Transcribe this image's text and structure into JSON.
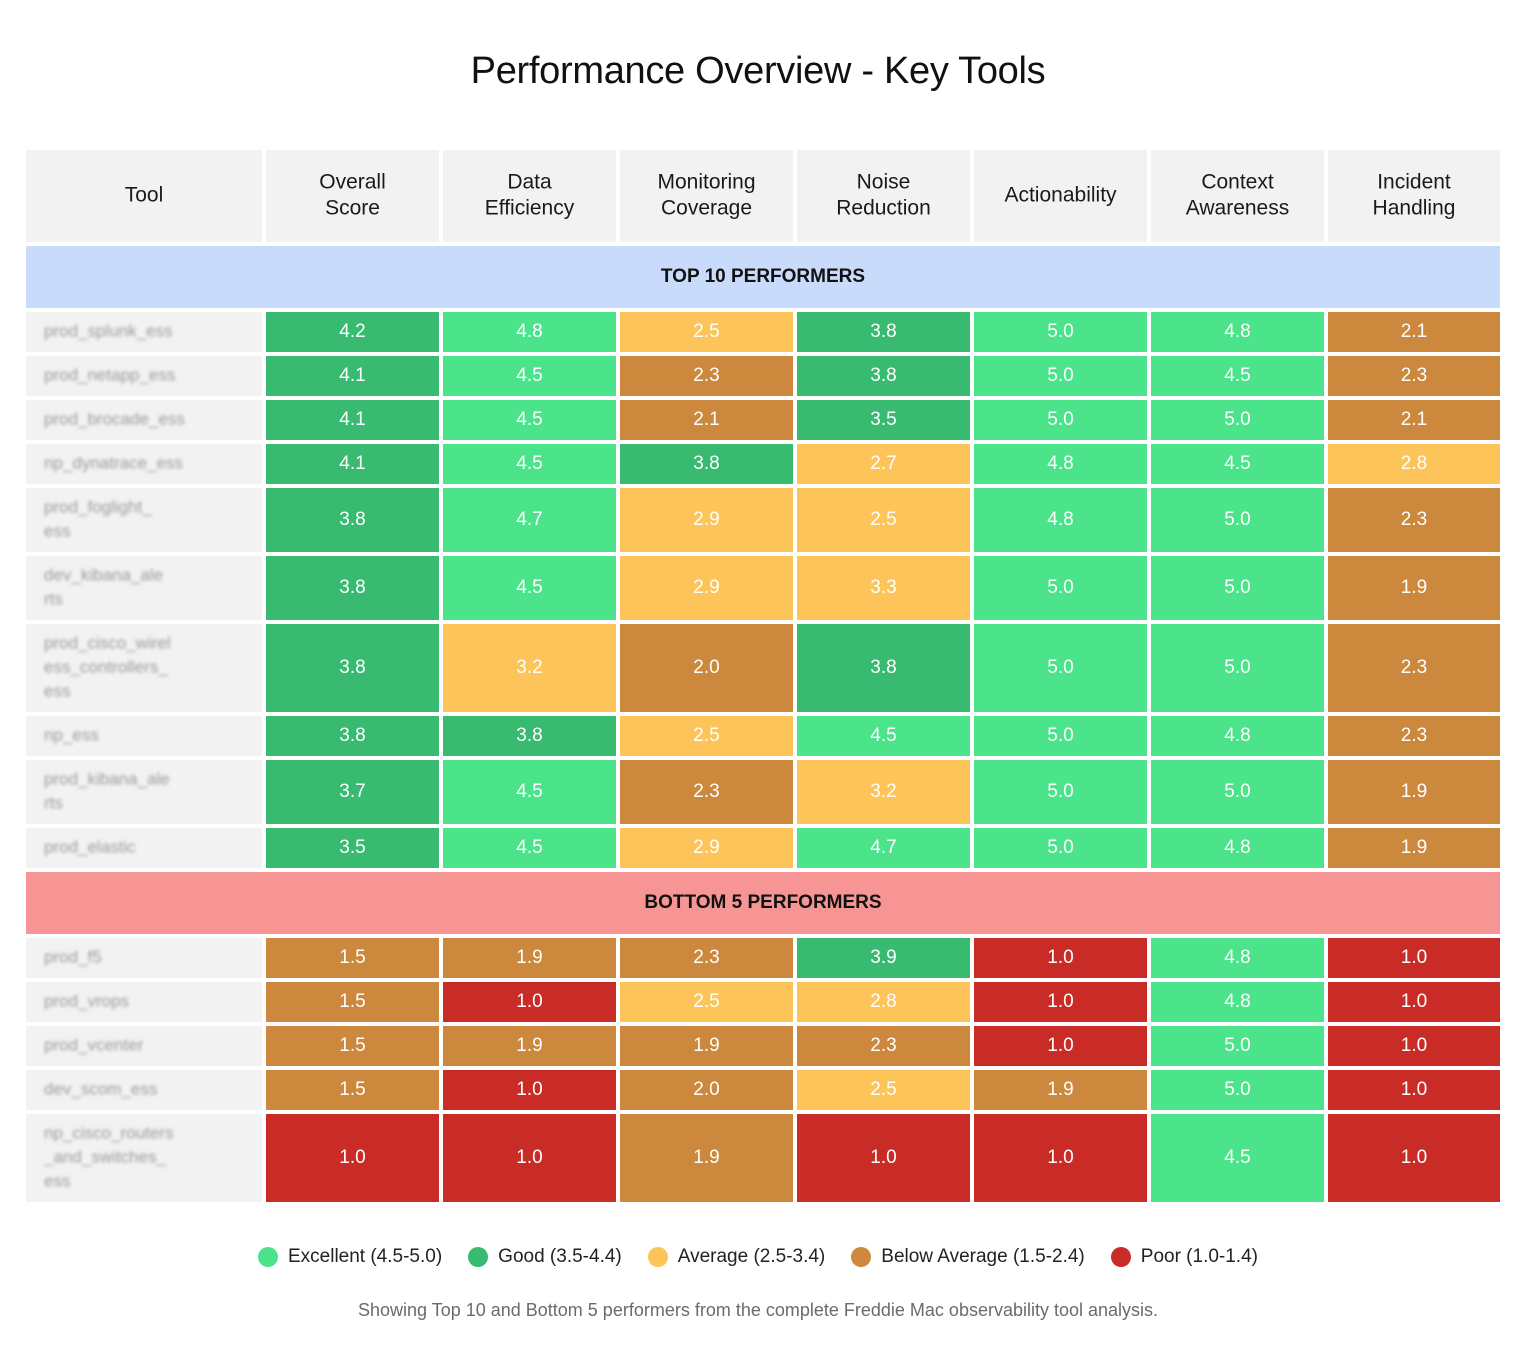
{
  "chart_data": {
    "type": "heatmap",
    "title": "Performance Overview - Key Tools",
    "columns": [
      "Tool",
      "Overall Score",
      "Data Efficiency",
      "Monitoring Coverage",
      "Noise Reduction",
      "Actionability",
      "Context Awareness",
      "Incident Handling"
    ],
    "sections": [
      {
        "label": "TOP 10 PERFORMERS",
        "color": "#c9dbfb",
        "rows": [
          {
            "tool": "prod_splunk_ess",
            "values": [
              "4.2",
              "4.8",
              "2.5",
              "3.8",
              "5.0",
              "4.8",
              "2.1"
            ]
          },
          {
            "tool": "prod_netapp_ess",
            "values": [
              "4.1",
              "4.5",
              "2.3",
              "3.8",
              "5.0",
              "4.5",
              "2.3"
            ]
          },
          {
            "tool": "prod_brocade_ess",
            "values": [
              "4.1",
              "4.5",
              "2.1",
              "3.5",
              "5.0",
              "5.0",
              "2.1"
            ]
          },
          {
            "tool": "np_dynatrace_ess",
            "values": [
              "4.1",
              "4.5",
              "3.8",
              "2.7",
              "4.8",
              "4.5",
              "2.8"
            ]
          },
          {
            "tool": "prod_foglight_\ness",
            "values": [
              "3.8",
              "4.7",
              "2.9",
              "2.5",
              "4.8",
              "5.0",
              "2.3"
            ]
          },
          {
            "tool": "dev_kibana_ale\nrts",
            "values": [
              "3.8",
              "4.5",
              "2.9",
              "3.3",
              "5.0",
              "5.0",
              "1.9"
            ]
          },
          {
            "tool": "prod_cisco_wirel\ness_controllers_\ness",
            "values": [
              "3.8",
              "3.2",
              "2.0",
              "3.8",
              "5.0",
              "5.0",
              "2.3"
            ]
          },
          {
            "tool": "np_ess",
            "values": [
              "3.8",
              "3.8",
              "2.5",
              "4.5",
              "5.0",
              "4.8",
              "2.3"
            ]
          },
          {
            "tool": "prod_kibana_ale\nrts",
            "values": [
              "3.7",
              "4.5",
              "2.3",
              "3.2",
              "5.0",
              "5.0",
              "1.9"
            ]
          },
          {
            "tool": "prod_elastic",
            "values": [
              "3.5",
              "4.5",
              "2.9",
              "4.7",
              "5.0",
              "4.8",
              "1.9"
            ]
          }
        ]
      },
      {
        "label": "BOTTOM 5 PERFORMERS",
        "color": "#f79595",
        "rows": [
          {
            "tool": "prod_f5",
            "values": [
              "1.5",
              "1.9",
              "2.3",
              "3.9",
              "1.0",
              "4.8",
              "1.0"
            ]
          },
          {
            "tool": "prod_vrops",
            "values": [
              "1.5",
              "1.0",
              "2.5",
              "2.8",
              "1.0",
              "4.8",
              "1.0"
            ]
          },
          {
            "tool": "prod_vcenter",
            "values": [
              "1.5",
              "1.9",
              "1.9",
              "2.3",
              "1.0",
              "5.0",
              "1.0"
            ]
          },
          {
            "tool": "dev_scom_ess",
            "values": [
              "1.5",
              "1.0",
              "2.0",
              "2.5",
              "1.9",
              "5.0",
              "1.0"
            ]
          },
          {
            "tool": "np_cisco_routers\n_and_switches_\ness",
            "values": [
              "1.0",
              "1.0",
              "1.9",
              "1.0",
              "1.0",
              "4.5",
              "1.0"
            ]
          }
        ]
      }
    ],
    "scale": [
      {
        "label": "Excellent (4.5-5.0)",
        "min": 4.5,
        "max": 5.0,
        "color": "#4be48b"
      },
      {
        "label": "Good (3.5-4.4)",
        "min": 3.5,
        "max": 4.4,
        "color": "#38bb71"
      },
      {
        "label": "Average (2.5-3.4)",
        "min": 2.5,
        "max": 3.4,
        "color": "#fdc45a"
      },
      {
        "label": "Below Average (1.5-2.4)",
        "min": 1.5,
        "max": 2.4,
        "color": "#cc883d"
      },
      {
        "label": "Poor (1.0-1.4)",
        "min": 1.0,
        "max": 1.4,
        "color": "#c92b26"
      }
    ],
    "footnote": "Showing Top 10 and Bottom 5 performers from the complete Freddie Mac observability tool analysis."
  }
}
